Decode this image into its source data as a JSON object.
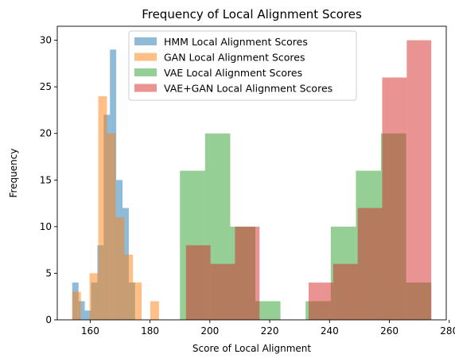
{
  "chart_data": {
    "type": "bar",
    "title": "Frequency of Local Alignment Scores",
    "xlabel": "Score of Local Alignment",
    "ylabel": "Frequency",
    "xlim": [
      149,
      279
    ],
    "ylim": [
      0,
      31.5
    ],
    "xticks": [
      160,
      180,
      200,
      220,
      240,
      260,
      280
    ],
    "yticks": [
      0,
      5,
      10,
      15,
      20,
      25,
      30
    ],
    "grid": false,
    "legend_position": "top-center",
    "series": [
      {
        "name": "HMM Local Alignment Scores",
        "color": "#1f77b4",
        "bins": [
          {
            "x0": 154.0,
            "x1": 156.1,
            "count": 4
          },
          {
            "x0": 156.1,
            "x1": 158.2,
            "count": 2
          },
          {
            "x0": 158.2,
            "x1": 160.3,
            "count": 1
          },
          {
            "x0": 160.3,
            "x1": 162.4,
            "count": 4
          },
          {
            "x0": 162.4,
            "x1": 164.5,
            "count": 8
          },
          {
            "x0": 164.5,
            "x1": 166.6,
            "count": 22
          },
          {
            "x0": 166.6,
            "x1": 168.7,
            "count": 29
          },
          {
            "x0": 168.7,
            "x1": 170.8,
            "count": 15
          },
          {
            "x0": 170.8,
            "x1": 172.9,
            "count": 12
          },
          {
            "x0": 172.9,
            "x1": 175.0,
            "count": 4
          }
        ]
      },
      {
        "name": "GAN Local Alignment Scores",
        "color": "#ff7f0e",
        "bins": [
          {
            "x0": 154.0,
            "x1": 156.9,
            "count": 3
          },
          {
            "x0": 156.9,
            "x1": 159.8,
            "count": 0
          },
          {
            "x0": 159.8,
            "x1": 162.7,
            "count": 5
          },
          {
            "x0": 162.7,
            "x1": 165.6,
            "count": 24
          },
          {
            "x0": 165.6,
            "x1": 168.5,
            "count": 20
          },
          {
            "x0": 168.5,
            "x1": 171.4,
            "count": 11
          },
          {
            "x0": 171.4,
            "x1": 174.3,
            "count": 7
          },
          {
            "x0": 174.3,
            "x1": 177.2,
            "count": 4
          },
          {
            "x0": 177.2,
            "x1": 180.1,
            "count": 0
          },
          {
            "x0": 180.1,
            "x1": 183.0,
            "count": 2
          }
        ]
      },
      {
        "name": "VAE Local Alignment Scores",
        "color": "#2ca02c",
        "bins": [
          {
            "x0": 190.0,
            "x1": 198.4,
            "count": 16
          },
          {
            "x0": 198.4,
            "x1": 206.8,
            "count": 20
          },
          {
            "x0": 206.8,
            "x1": 215.2,
            "count": 10
          },
          {
            "x0": 215.2,
            "x1": 223.6,
            "count": 2
          },
          {
            "x0": 223.6,
            "x1": 232.0,
            "count": 0
          },
          {
            "x0": 232.0,
            "x1": 240.4,
            "count": 2
          },
          {
            "x0": 240.4,
            "x1": 248.8,
            "count": 10
          },
          {
            "x0": 248.8,
            "x1": 257.2,
            "count": 16
          },
          {
            "x0": 257.2,
            "x1": 265.6,
            "count": 20
          },
          {
            "x0": 265.6,
            "x1": 274.0,
            "count": 4
          }
        ]
      },
      {
        "name": "VAE+GAN Local Alignment Scores",
        "color": "#d62728",
        "bins": [
          {
            "x0": 192.0,
            "x1": 200.2,
            "count": 8
          },
          {
            "x0": 200.2,
            "x1": 208.4,
            "count": 6
          },
          {
            "x0": 208.4,
            "x1": 216.6,
            "count": 10
          },
          {
            "x0": 216.6,
            "x1": 224.8,
            "count": 0
          },
          {
            "x0": 224.8,
            "x1": 233.0,
            "count": 0
          },
          {
            "x0": 233.0,
            "x1": 241.2,
            "count": 4
          },
          {
            "x0": 241.2,
            "x1": 249.4,
            "count": 6
          },
          {
            "x0": 249.4,
            "x1": 257.6,
            "count": 12
          },
          {
            "x0": 257.6,
            "x1": 265.8,
            "count": 26
          },
          {
            "x0": 265.8,
            "x1": 274.0,
            "count": 30
          }
        ]
      }
    ]
  }
}
